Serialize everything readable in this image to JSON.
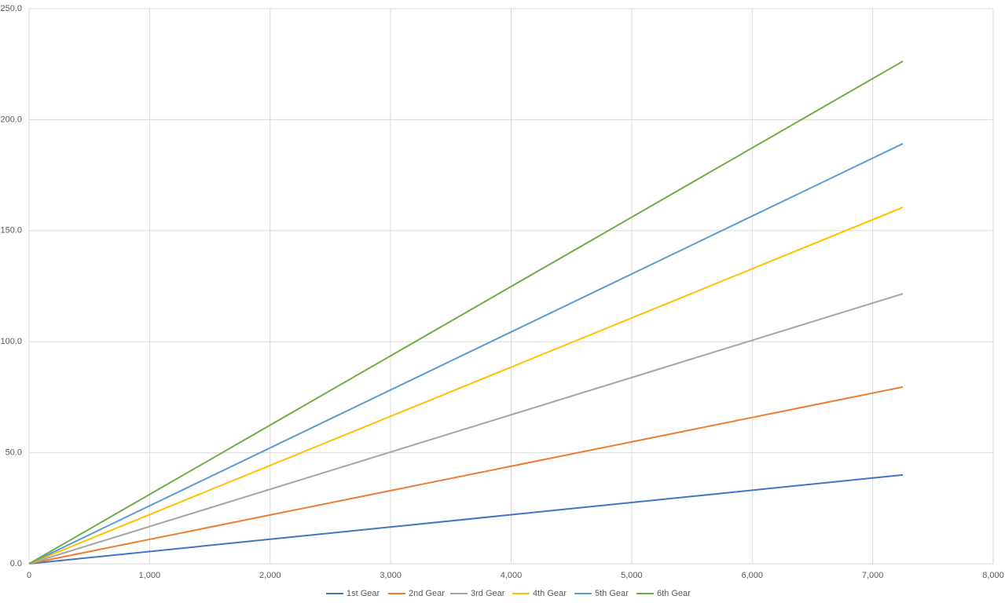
{
  "chart_data": {
    "type": "line",
    "x": [
      0,
      7250
    ],
    "series": [
      {
        "name": "1st Gear",
        "color": "#4472c4",
        "values": [
          0,
          40.0
        ]
      },
      {
        "name": "2nd Gear",
        "color": "#ed7d31",
        "values": [
          0,
          79.6
        ]
      },
      {
        "name": "3rd Gear",
        "color": "#a5a5a5",
        "values": [
          0,
          121.6
        ]
      },
      {
        "name": "4th Gear",
        "color": "#ffc000",
        "values": [
          0,
          160.5
        ]
      },
      {
        "name": "5th Gear",
        "color": "#5b9bd5",
        "values": [
          0,
          189.2
        ]
      },
      {
        "name": "6th Gear",
        "color": "#70ad47",
        "values": [
          0,
          226.3
        ]
      }
    ],
    "xlim": [
      0,
      8000
    ],
    "xticks": [
      0,
      {
        "value": 1000,
        "label": "1,000"
      },
      {
        "value": 2000,
        "label": "2,000"
      },
      {
        "value": 3000,
        "label": "3,000"
      },
      {
        "value": 4000,
        "label": "4,000"
      },
      {
        "value": 5000,
        "label": "5,000"
      },
      {
        "value": 6000,
        "label": "6,000"
      },
      {
        "value": 7000,
        "label": "7,000"
      },
      {
        "value": 8000,
        "label": "8,000"
      }
    ],
    "ylim": [
      0,
      250
    ],
    "yticks": [
      {
        "value": 0,
        "label": "0.0"
      },
      {
        "value": 50,
        "label": "50.0"
      },
      {
        "value": 100,
        "label": "100.0"
      },
      {
        "value": 150,
        "label": "150.0"
      },
      {
        "value": 200,
        "label": "200.0"
      },
      {
        "value": 250,
        "label": "250.0"
      }
    ],
    "grid": true,
    "legend": "bottom"
  }
}
